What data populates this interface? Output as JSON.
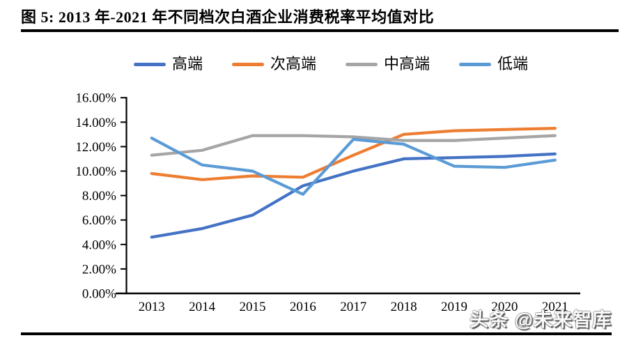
{
  "header": {
    "title": "图 5: 2013 年-2021 年不同档次白酒企业消费税率平均值对比"
  },
  "watermark": {
    "text": "头条 @未来智库"
  },
  "chart_data": {
    "type": "line",
    "title": "2013年-2021年不同档次白酒企业消费税率平均值对比",
    "categories": [
      "2013",
      "2014",
      "2015",
      "2016",
      "2017",
      "2018",
      "2019",
      "2020",
      "2021"
    ],
    "series": [
      {
        "name": "高端",
        "color": "#4472C4",
        "values": [
          4.6,
          5.3,
          6.4,
          8.8,
          10.0,
          11.0,
          11.1,
          11.2,
          11.4
        ]
      },
      {
        "name": "次高端",
        "color": "#ED7D31",
        "values": [
          9.8,
          9.3,
          9.6,
          9.5,
          11.3,
          13.0,
          13.3,
          13.4,
          13.5
        ]
      },
      {
        "name": "中高端",
        "color": "#A5A5A5",
        "values": [
          11.3,
          11.7,
          12.9,
          12.9,
          12.8,
          12.5,
          12.5,
          12.7,
          12.9
        ]
      },
      {
        "name": "低端",
        "color": "#5B9BD5",
        "values": [
          12.7,
          10.5,
          10.0,
          8.1,
          12.6,
          12.2,
          10.4,
          10.3,
          10.9
        ]
      }
    ],
    "xlabel": "",
    "ylabel": "",
    "ylim": [
      0,
      16
    ],
    "y_tick_step": 2,
    "y_tick_labels": [
      "0.00%",
      "2.00%",
      "4.00%",
      "6.00%",
      "8.00%",
      "10.00%",
      "12.00%",
      "14.00%",
      "16.00%"
    ],
    "gridlines": false,
    "legend_position": "top"
  }
}
